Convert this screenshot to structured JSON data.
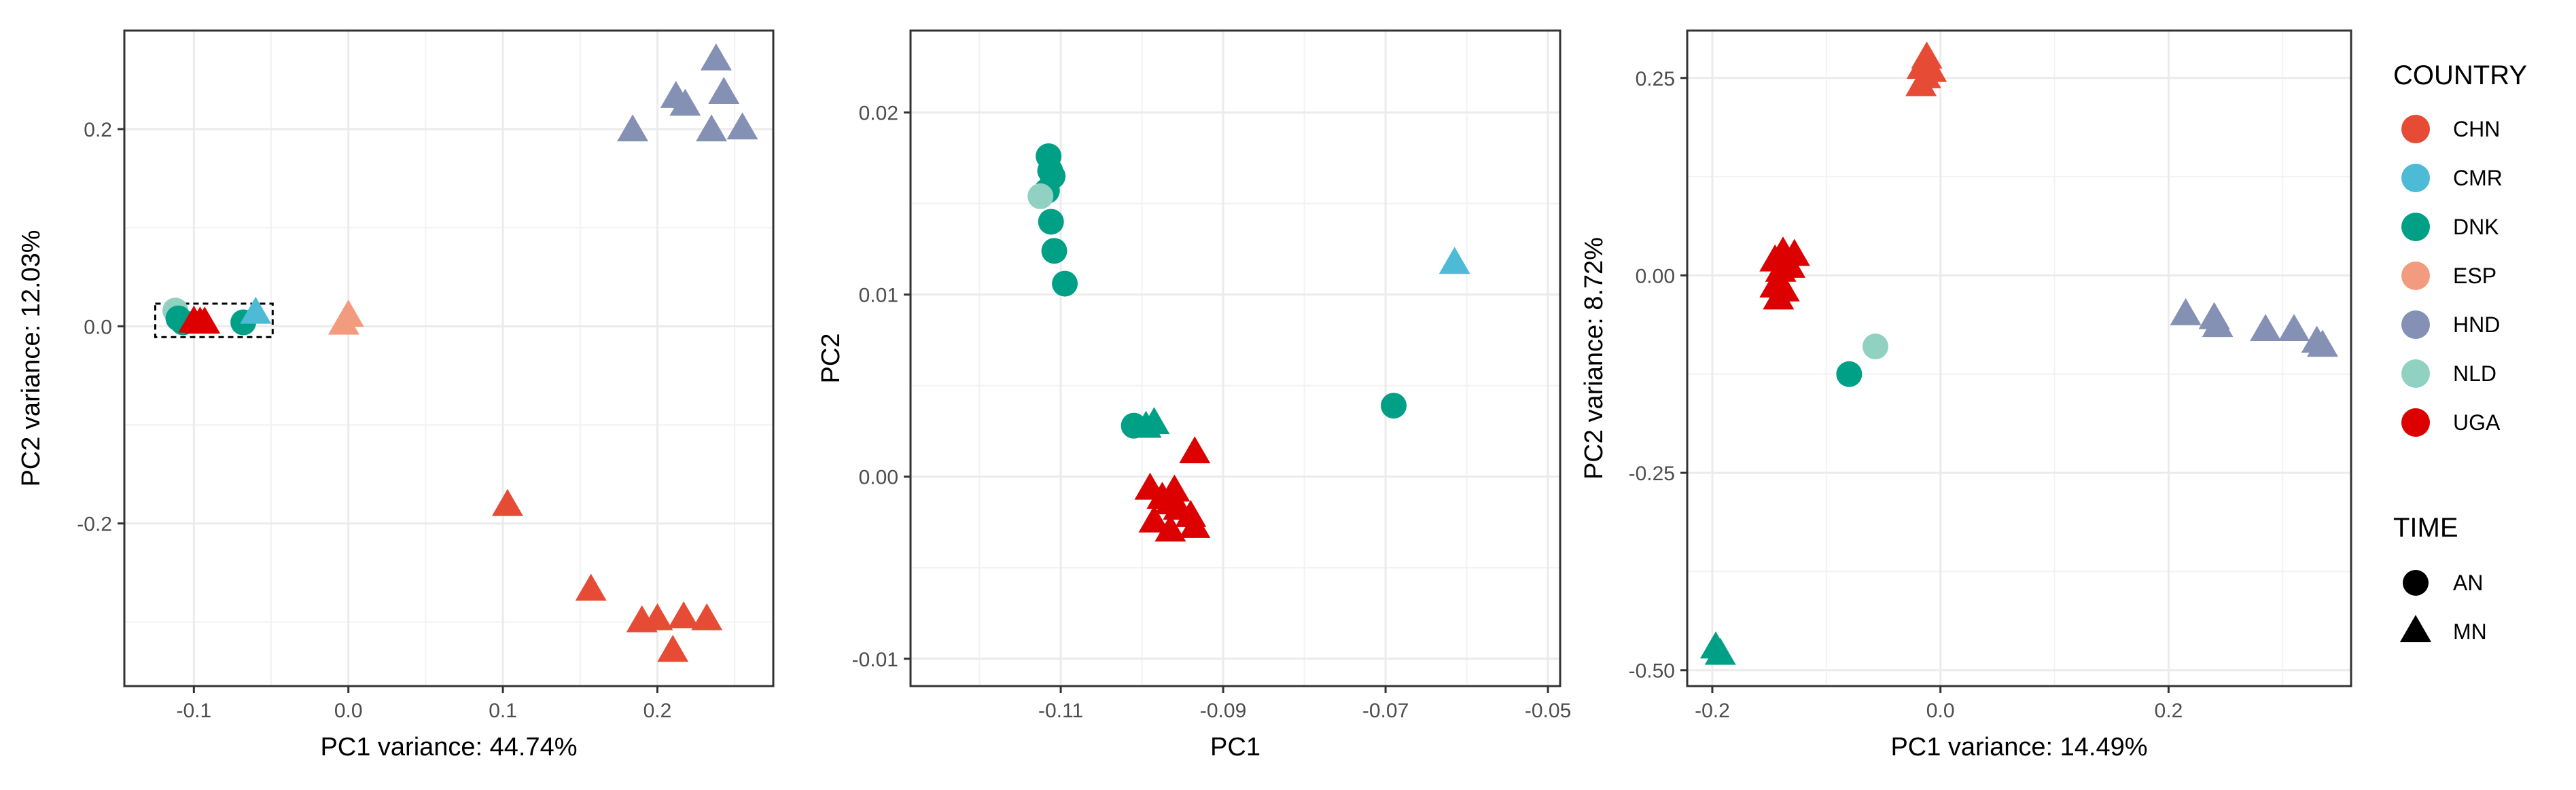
{
  "colors": {
    "CHN": "#E64B35",
    "CMR": "#4DBBD5",
    "DNK": "#00A087",
    "ESP": "#F39B7F",
    "HND": "#8491B4",
    "NLD": "#91D1C2",
    "UGA": "#DC0000"
  },
  "legend": {
    "country_title": "COUNTRY",
    "countries": [
      "CHN",
      "CMR",
      "DNK",
      "ESP",
      "HND",
      "NLD",
      "UGA"
    ],
    "time_title": "TIME",
    "times": [
      {
        "label": "AN",
        "shape": "circle"
      },
      {
        "label": "MN",
        "shape": "triangle"
      }
    ]
  },
  "chart_data": [
    {
      "type": "scatter",
      "xlabel": "PC1 variance: 44.74%",
      "ylabel": "PC2 variance: 12.03%",
      "xlim": [
        -0.145,
        0.275
      ],
      "ylim": [
        -0.365,
        0.3
      ],
      "xticks": [
        -0.1,
        0.0,
        0.1,
        0.2
      ],
      "xtick_labels": [
        "-0.1",
        "0.0",
        "0.1",
        "0.2"
      ],
      "yticks": [
        -0.2,
        0.0,
        0.2
      ],
      "ytick_labels": [
        "-0.2",
        "0.0",
        "0.2"
      ],
      "grid": true,
      "highlight_box": {
        "x": [
          -0.125,
          -0.049
        ],
        "y": [
          -0.011,
          0.023
        ]
      },
      "points": [
        {
          "x": 0.238,
          "y": 0.27,
          "country": "HND",
          "time": "MN"
        },
        {
          "x": 0.212,
          "y": 0.232,
          "country": "HND",
          "time": "MN"
        },
        {
          "x": 0.218,
          "y": 0.224,
          "country": "HND",
          "time": "MN"
        },
        {
          "x": 0.243,
          "y": 0.236,
          "country": "HND",
          "time": "MN"
        },
        {
          "x": 0.184,
          "y": 0.198,
          "country": "HND",
          "time": "MN"
        },
        {
          "x": 0.235,
          "y": 0.198,
          "country": "HND",
          "time": "MN"
        },
        {
          "x": 0.255,
          "y": 0.2,
          "country": "HND",
          "time": "MN"
        },
        {
          "x": -0.112,
          "y": 0.016,
          "country": "NLD",
          "time": "AN"
        },
        {
          "x": -0.11,
          "y": 0.008,
          "country": "DNK",
          "time": "AN"
        },
        {
          "x": -0.107,
          "y": 0.004,
          "country": "DNK",
          "time": "AN"
        },
        {
          "x": -0.068,
          "y": 0.004,
          "country": "DNK",
          "time": "AN"
        },
        {
          "x": -0.06,
          "y": 0.013,
          "country": "CMR",
          "time": "MN"
        },
        {
          "x": -0.1,
          "y": 0.004,
          "country": "UGA",
          "time": "MN"
        },
        {
          "x": -0.096,
          "y": 0.003,
          "country": "UGA",
          "time": "MN"
        },
        {
          "x": -0.093,
          "y": 0.003,
          "country": "UGA",
          "time": "MN"
        },
        {
          "x": -0.003,
          "y": 0.002,
          "country": "ESP",
          "time": "MN"
        },
        {
          "x": 0.0,
          "y": 0.01,
          "country": "ESP",
          "time": "MN"
        },
        {
          "x": 0.103,
          "y": -0.182,
          "country": "CHN",
          "time": "MN"
        },
        {
          "x": 0.157,
          "y": -0.268,
          "country": "CHN",
          "time": "MN"
        },
        {
          "x": 0.19,
          "y": -0.3,
          "country": "CHN",
          "time": "MN"
        },
        {
          "x": 0.2,
          "y": -0.298,
          "country": "CHN",
          "time": "MN"
        },
        {
          "x": 0.217,
          "y": -0.296,
          "country": "CHN",
          "time": "MN"
        },
        {
          "x": 0.232,
          "y": -0.298,
          "country": "CHN",
          "time": "MN"
        },
        {
          "x": 0.21,
          "y": -0.33,
          "country": "CHN",
          "time": "MN"
        }
      ]
    },
    {
      "type": "scatter",
      "xlabel": "PC1",
      "ylabel": "PC2",
      "xlim": [
        -0.1285,
        -0.0485
      ],
      "ylim": [
        -0.0115,
        0.0245
      ],
      "xticks": [
        -0.11,
        -0.09,
        -0.07,
        -0.05
      ],
      "xtick_labels": [
        "-0.11",
        "-0.09",
        "-0.07",
        "-0.05"
      ],
      "yticks": [
        -0.01,
        0.0,
        0.01,
        0.02
      ],
      "ytick_labels": [
        "-0.01",
        "0.00",
        "0.01",
        "0.02"
      ],
      "grid": true,
      "points": [
        {
          "x": -0.1115,
          "y": 0.0176,
          "country": "DNK",
          "time": "AN"
        },
        {
          "x": -0.1113,
          "y": 0.0168,
          "country": "DNK",
          "time": "AN"
        },
        {
          "x": -0.111,
          "y": 0.0165,
          "country": "DNK",
          "time": "AN"
        },
        {
          "x": -0.1117,
          "y": 0.0157,
          "country": "DNK",
          "time": "AN"
        },
        {
          "x": -0.1125,
          "y": 0.0154,
          "country": "NLD",
          "time": "AN"
        },
        {
          "x": -0.1112,
          "y": 0.014,
          "country": "DNK",
          "time": "AN"
        },
        {
          "x": -0.1108,
          "y": 0.0124,
          "country": "DNK",
          "time": "AN"
        },
        {
          "x": -0.1095,
          "y": 0.0106,
          "country": "DNK",
          "time": "AN"
        },
        {
          "x": -0.101,
          "y": 0.0028,
          "country": "DNK",
          "time": "AN"
        },
        {
          "x": -0.0995,
          "y": 0.0027,
          "country": "DNK",
          "time": "MN"
        },
        {
          "x": -0.0985,
          "y": 0.0029,
          "country": "DNK",
          "time": "MN"
        },
        {
          "x": -0.069,
          "y": 0.0039,
          "country": "DNK",
          "time": "AN"
        },
        {
          "x": -0.0615,
          "y": 0.0117,
          "country": "CMR",
          "time": "MN"
        },
        {
          "x": -0.0935,
          "y": 0.0013,
          "country": "UGA",
          "time": "MN"
        },
        {
          "x": -0.099,
          "y": -0.0007,
          "country": "UGA",
          "time": "MN"
        },
        {
          "x": -0.096,
          "y": -0.0008,
          "country": "UGA",
          "time": "MN"
        },
        {
          "x": -0.0975,
          "y": -0.0012,
          "country": "UGA",
          "time": "MN"
        },
        {
          "x": -0.0965,
          "y": -0.0015,
          "country": "UGA",
          "time": "MN"
        },
        {
          "x": -0.0955,
          "y": -0.0018,
          "country": "UGA",
          "time": "MN"
        },
        {
          "x": -0.094,
          "y": -0.0022,
          "country": "UGA",
          "time": "MN"
        },
        {
          "x": -0.0985,
          "y": -0.0025,
          "country": "UGA",
          "time": "MN"
        },
        {
          "x": -0.0935,
          "y": -0.0028,
          "country": "UGA",
          "time": "MN"
        },
        {
          "x": -0.0965,
          "y": -0.003,
          "country": "UGA",
          "time": "MN"
        }
      ]
    },
    {
      "type": "scatter",
      "xlabel": "PC1 variance: 14.49%",
      "ylabel": "PC2 variance: 8.72%",
      "xlim": [
        -0.222,
        0.36
      ],
      "ylim": [
        -0.52,
        0.31
      ],
      "xticks": [
        -0.2,
        0.0,
        0.2
      ],
      "xtick_labels": [
        "-0.2",
        "0.0",
        "0.2"
      ],
      "yticks": [
        -0.5,
        -0.25,
        0.0,
        0.25
      ],
      "ytick_labels": [
        "-0.50",
        "-0.25",
        "0.00",
        "0.25"
      ],
      "grid": true,
      "points": [
        {
          "x": -0.012,
          "y": 0.275,
          "country": "CHN",
          "time": "MN"
        },
        {
          "x": -0.016,
          "y": 0.262,
          "country": "CHN",
          "time": "MN"
        },
        {
          "x": -0.008,
          "y": 0.258,
          "country": "CHN",
          "time": "MN"
        },
        {
          "x": -0.013,
          "y": 0.25,
          "country": "CHN",
          "time": "MN"
        },
        {
          "x": -0.017,
          "y": 0.24,
          "country": "CHN",
          "time": "MN"
        },
        {
          "x": -0.138,
          "y": 0.028,
          "country": "UGA",
          "time": "MN"
        },
        {
          "x": -0.128,
          "y": 0.025,
          "country": "UGA",
          "time": "MN"
        },
        {
          "x": -0.145,
          "y": 0.018,
          "country": "UGA",
          "time": "MN"
        },
        {
          "x": -0.132,
          "y": 0.01,
          "country": "UGA",
          "time": "MN"
        },
        {
          "x": -0.14,
          "y": 0.005,
          "country": "UGA",
          "time": "MN"
        },
        {
          "x": -0.145,
          "y": -0.015,
          "country": "UGA",
          "time": "MN"
        },
        {
          "x": -0.137,
          "y": -0.02,
          "country": "UGA",
          "time": "MN"
        },
        {
          "x": -0.142,
          "y": -0.03,
          "country": "UGA",
          "time": "MN"
        },
        {
          "x": 0.215,
          "y": -0.05,
          "country": "HND",
          "time": "MN"
        },
        {
          "x": 0.24,
          "y": -0.055,
          "country": "HND",
          "time": "MN"
        },
        {
          "x": 0.243,
          "y": -0.065,
          "country": "HND",
          "time": "MN"
        },
        {
          "x": 0.285,
          "y": -0.07,
          "country": "HND",
          "time": "MN"
        },
        {
          "x": 0.31,
          "y": -0.07,
          "country": "HND",
          "time": "MN"
        },
        {
          "x": 0.33,
          "y": -0.085,
          "country": "HND",
          "time": "MN"
        },
        {
          "x": 0.335,
          "y": -0.09,
          "country": "HND",
          "time": "MN"
        },
        {
          "x": -0.057,
          "y": -0.09,
          "country": "NLD",
          "time": "AN"
        },
        {
          "x": -0.08,
          "y": -0.125,
          "country": "DNK",
          "time": "AN"
        },
        {
          "x": -0.197,
          "y": -0.472,
          "country": "DNK",
          "time": "MN"
        },
        {
          "x": -0.193,
          "y": -0.48,
          "country": "DNK",
          "time": "MN"
        }
      ]
    }
  ]
}
